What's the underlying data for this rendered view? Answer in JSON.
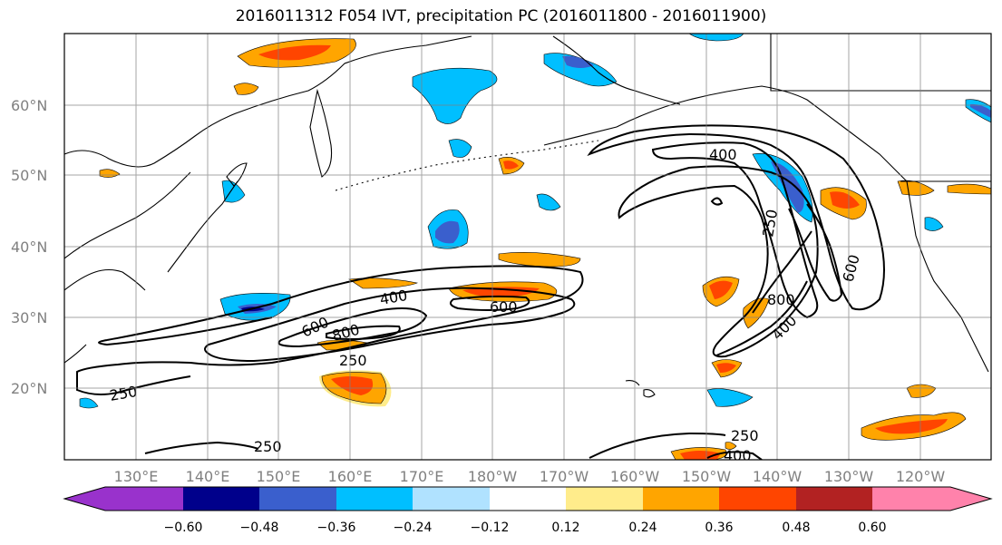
{
  "title": "2016011312 F054 IVT, precipitation PC (2016011800 - 2016011900)",
  "lat_ticks": [
    "60°N",
    "50°N",
    "40°N",
    "30°N",
    "20°N"
  ],
  "lon_ticks": [
    "130°E",
    "140°E",
    "150°E",
    "160°E",
    "170°E",
    "180°W",
    "170°W",
    "160°W",
    "150°W",
    "140°W",
    "130°W",
    "120°W"
  ],
  "colorbar": {
    "colors": [
      "#9932cc",
      "#00008b",
      "#3a5fcd",
      "#00bfff",
      "#b0e2ff",
      "#ffffff",
      "#ffec8b",
      "#ffa500",
      "#ff4500",
      "#b22222",
      "#ff82ab"
    ],
    "labels": [
      "−0.60",
      "−0.48",
      "−0.36",
      "−0.24",
      "−0.12",
      "0.12",
      "0.24",
      "0.36",
      "0.48",
      "0.60"
    ]
  },
  "contour_labels": [
    "400",
    "250",
    "600",
    "800",
    "400",
    "600",
    "800",
    "250",
    "250",
    "250",
    "600",
    "800",
    "400",
    "250",
    "400"
  ]
}
